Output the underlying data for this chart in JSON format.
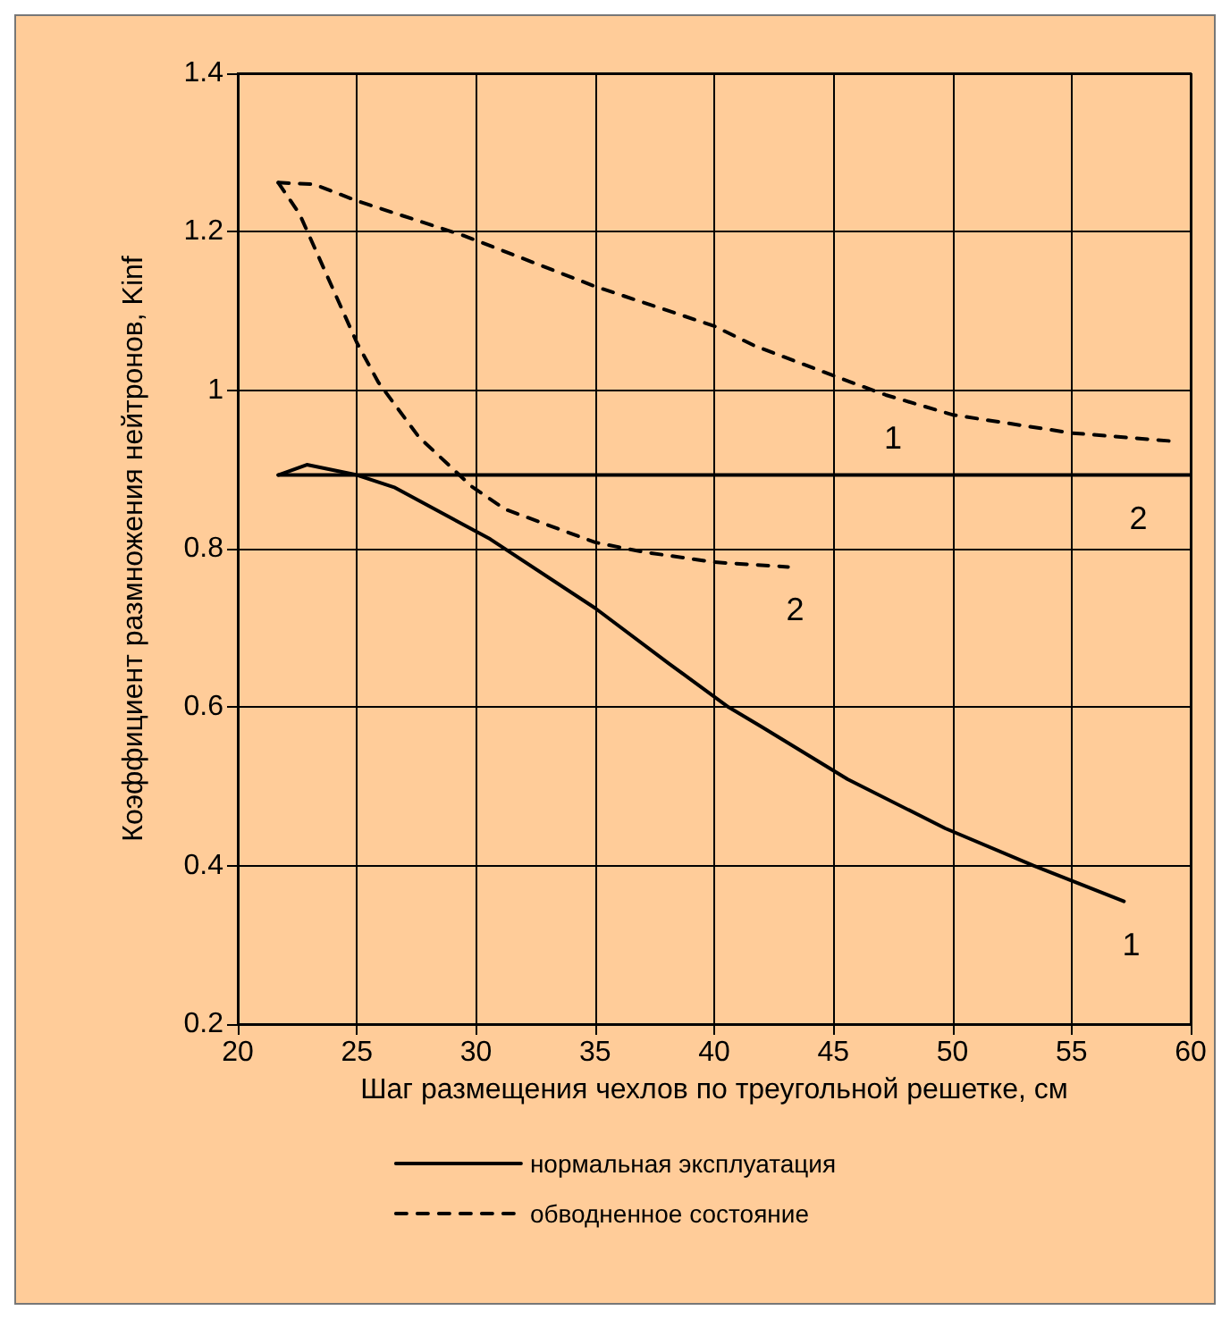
{
  "chart_data": {
    "type": "line",
    "xlabel": "Шаг размещения чехлов по треугольной решетке, см",
    "ylabel": "Коэффициент размножения нейтронов, Kinf",
    "xlim": [
      20,
      60
    ],
    "xticks": [
      20,
      25,
      30,
      35,
      40,
      45,
      50,
      55,
      60
    ],
    "ylim": [
      0.2,
      1.4
    ],
    "yticks": [
      0.2,
      0.4,
      0.6,
      0.8,
      1.0,
      1.2,
      1.4
    ],
    "grid": true,
    "legend": "bottom",
    "marker": "none",
    "series": [
      {
        "name": "нормальная эксплуатация",
        "color": "#000000",
        "line_style": "solid",
        "x": [
          21.7,
          22.9,
          25,
          26.6,
          30.6,
          35,
          38.1,
          40.6,
          42,
          45.6,
          49.7,
          53.4,
          57.2
        ],
        "values": [
          0.893,
          0.906,
          0.893,
          0.877,
          0.812,
          0.725,
          0.655,
          0.6,
          0.575,
          0.509,
          0.447,
          0.4,
          0.355
        ]
      },
      {
        "color": "#000000",
        "line_style": "solid",
        "x": [
          21.7,
          57.5,
          60
        ],
        "values": [
          0.893,
          0.893,
          0.893
        ]
      },
      {
        "name": "обводненное состояние",
        "color": "#000000",
        "line_style": "dashed",
        "x": [
          21.7,
          23.2,
          25,
          29.5,
          35,
          40,
          41.7,
          45.3,
          47.2,
          50,
          55,
          59.1
        ],
        "values": [
          1.262,
          1.26,
          1.239,
          1.195,
          1.131,
          1.081,
          1.056,
          1.015,
          0.994,
          0.969,
          0.946,
          0.936
        ]
      },
      {
        "color": "#000000",
        "line_style": "dashed",
        "x": [
          21.7,
          22.6,
          25,
          25.9,
          27.6,
          29.8,
          31.2,
          35,
          37,
          40,
          43.1
        ],
        "values": [
          1.262,
          1.222,
          1.06,
          1.01,
          0.941,
          0.879,
          0.85,
          0.808,
          0.796,
          0.783,
          0.777
        ]
      }
    ],
    "annotations": [
      {
        "text": "1",
        "x": 47.2,
        "y": 0.994
      },
      {
        "text": "2",
        "x": 57.5,
        "y": 0.893
      },
      {
        "text": "2",
        "x": 43.1,
        "y": 0.777
      },
      {
        "text": "1",
        "x": 57.2,
        "y": 0.355
      }
    ]
  }
}
